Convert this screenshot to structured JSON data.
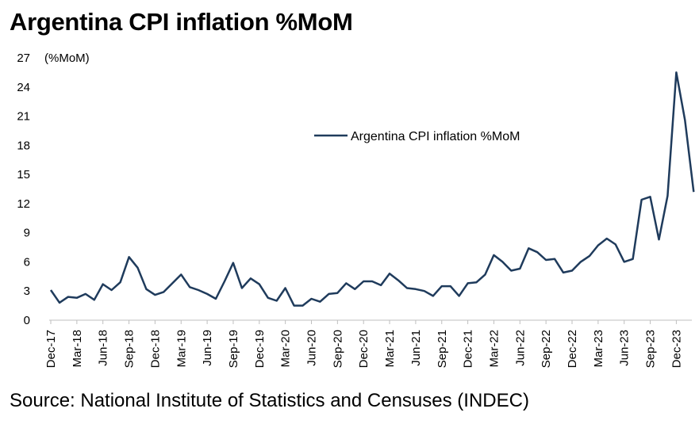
{
  "title": "Argentina CPI inflation %MoM",
  "source": "Source: National Institute of Statistics and Censuses (INDEC)",
  "chart_data": {
    "type": "line",
    "ylabel": "(%MoM)",
    "ylim": [
      0,
      27
    ],
    "yticks": [
      0,
      3,
      6,
      9,
      12,
      15,
      18,
      21,
      24,
      27
    ],
    "grid": false,
    "legend_position": "top-center",
    "x": [
      "Dec-17",
      "Jan-18",
      "Feb-18",
      "Mar-18",
      "Apr-18",
      "May-18",
      "Jun-18",
      "Jul-18",
      "Aug-18",
      "Sep-18",
      "Oct-18",
      "Nov-18",
      "Dec-18",
      "Jan-19",
      "Feb-19",
      "Mar-19",
      "Apr-19",
      "May-19",
      "Jun-19",
      "Jul-19",
      "Aug-19",
      "Sep-19",
      "Oct-19",
      "Nov-19",
      "Dec-19",
      "Jan-20",
      "Feb-20",
      "Mar-20",
      "Apr-20",
      "May-20",
      "Jun-20",
      "Jul-20",
      "Aug-20",
      "Sep-20",
      "Oct-20",
      "Nov-20",
      "Dec-20",
      "Jan-21",
      "Feb-21",
      "Mar-21",
      "Apr-21",
      "May-21",
      "Jun-21",
      "Jul-21",
      "Aug-21",
      "Sep-21",
      "Oct-21",
      "Nov-21",
      "Dec-21",
      "Jan-22",
      "Feb-22",
      "Mar-22",
      "Apr-22",
      "May-22",
      "Jun-22",
      "Jul-22",
      "Aug-22",
      "Sep-22",
      "Oct-22",
      "Nov-22",
      "Dec-22",
      "Jan-23",
      "Feb-23",
      "Mar-23",
      "Apr-23",
      "May-23",
      "Jun-23",
      "Jul-23",
      "Aug-23",
      "Sep-23",
      "Oct-23",
      "Nov-23",
      "Dec-23",
      "Jan-24",
      "Feb-24"
    ],
    "xtick_labels": [
      "Dec-17",
      "Mar-18",
      "Jun-18",
      "Sep-18",
      "Dec-18",
      "Mar-19",
      "Jun-19",
      "Sep-19",
      "Dec-19",
      "Mar-20",
      "Jun-20",
      "Sep-20",
      "Dec-20",
      "Mar-21",
      "Jun-21",
      "Sep-21",
      "Dec-21",
      "Mar-22",
      "Jun-22",
      "Sep-22",
      "Dec-22",
      "Mar-23",
      "Jun-23",
      "Sep-23",
      "Dec-23"
    ],
    "series": [
      {
        "name": "Argentina CPI inflation %MoM",
        "color": "#1f3b5c",
        "values": [
          3.1,
          1.8,
          2.4,
          2.3,
          2.7,
          2.1,
          3.7,
          3.1,
          3.9,
          6.5,
          5.4,
          3.2,
          2.6,
          2.9,
          3.8,
          4.7,
          3.4,
          3.1,
          2.7,
          2.2,
          4.0,
          5.9,
          3.3,
          4.3,
          3.7,
          2.3,
          2.0,
          3.3,
          1.5,
          1.5,
          2.2,
          1.9,
          2.7,
          2.8,
          3.8,
          3.2,
          4.0,
          4.0,
          3.6,
          4.8,
          4.1,
          3.3,
          3.2,
          3.0,
          2.5,
          3.5,
          3.5,
          2.5,
          3.8,
          3.9,
          4.7,
          6.7,
          6.0,
          5.1,
          5.3,
          7.4,
          7.0,
          6.2,
          6.3,
          4.9,
          5.1,
          6.0,
          6.6,
          7.7,
          8.4,
          7.8,
          6.0,
          6.3,
          12.4,
          12.7,
          8.3,
          12.8,
          25.5,
          20.6,
          13.2
        ]
      }
    ]
  }
}
